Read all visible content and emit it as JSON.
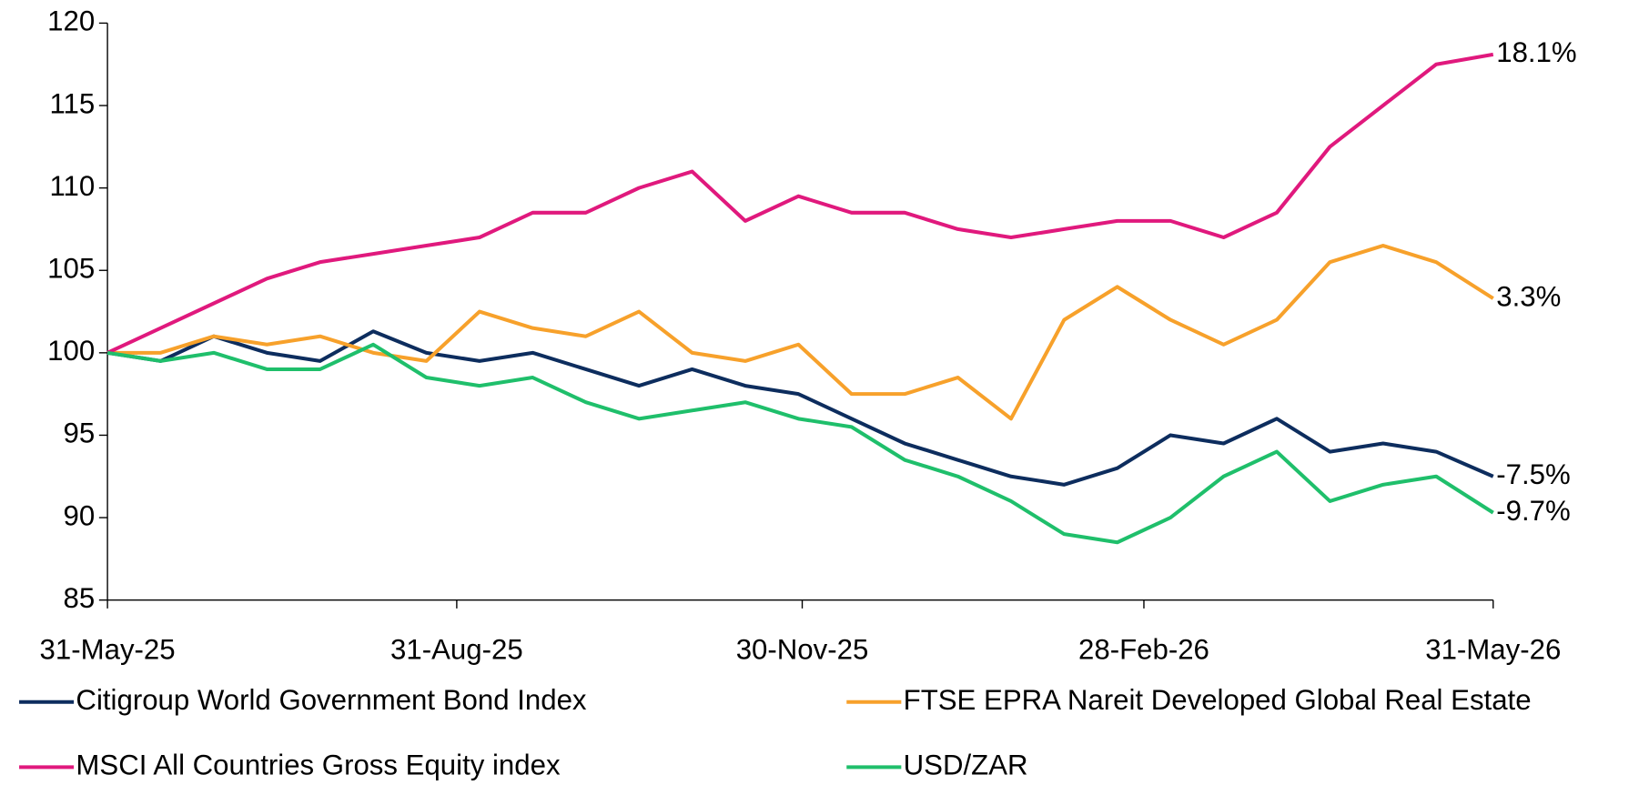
{
  "chart_data": {
    "type": "line",
    "x": [
      "2025-05-31",
      "2025-06-14",
      "2025-06-28",
      "2025-07-12",
      "2025-07-26",
      "2025-08-09",
      "2025-08-23",
      "2025-09-06",
      "2025-09-20",
      "2025-10-04",
      "2025-10-18",
      "2025-11-01",
      "2025-11-15",
      "2025-11-29",
      "2025-12-13",
      "2025-12-27",
      "2026-01-10",
      "2026-01-24",
      "2026-02-07",
      "2026-02-21",
      "2026-03-07",
      "2026-03-21",
      "2026-04-04",
      "2026-04-18",
      "2026-05-02",
      "2026-05-16",
      "2026-05-31"
    ],
    "series": [
      {
        "name": "Citigroup World Government Bond Index",
        "color": "#0d2d5e",
        "end_label": "-7.5%",
        "values": [
          100,
          99.5,
          101,
          100,
          99.5,
          101.3,
          100,
          99.5,
          100,
          99,
          98,
          99,
          98,
          97.5,
          96,
          94.5,
          93.5,
          92.5,
          92,
          93,
          95,
          94.5,
          96,
          94,
          94.5,
          94,
          92.5
        ]
      },
      {
        "name": "FTSE EPRA Nareit Developed Global Real Estate",
        "color": "#f7a12b",
        "end_label": "3.3%",
        "values": [
          100,
          100,
          101,
          100.5,
          101,
          100,
          99.5,
          102.5,
          101.5,
          101,
          102.5,
          100,
          99.5,
          100.5,
          97.5,
          97.5,
          98.5,
          96,
          102,
          104,
          102,
          100.5,
          102,
          105.5,
          106.5,
          105.5,
          103.3
        ]
      },
      {
        "name": "MSCI All Countries Gross Equity index",
        "color": "#e0197d",
        "end_label": "18.1%",
        "values": [
          100,
          101.5,
          103,
          104.5,
          105.5,
          106,
          106.5,
          107,
          108.5,
          108.5,
          110,
          111,
          108,
          109.5,
          108.5,
          108.5,
          107.5,
          107,
          107.5,
          108,
          108,
          107,
          108.5,
          112.5,
          115,
          117.5,
          118.1
        ]
      },
      {
        "name": "USD/ZAR",
        "color": "#1fbf6b",
        "end_label": "-9.7%",
        "values": [
          100,
          99.5,
          100,
          99,
          99,
          100.5,
          98.5,
          98,
          98.5,
          97,
          96,
          96.5,
          97,
          96,
          95.5,
          93.5,
          92.5,
          91,
          89,
          88.5,
          90,
          92.5,
          94,
          91,
          92,
          92.5,
          90.3
        ]
      }
    ],
    "xlim": [
      "2025-05-31",
      "2026-05-31"
    ],
    "xticks": [
      {
        "value": "2025-05-31",
        "label": "31-May-25"
      },
      {
        "value": "2025-08-31",
        "label": "31-Aug-25"
      },
      {
        "value": "2025-11-30",
        "label": "30-Nov-25"
      },
      {
        "value": "2026-02-28",
        "label": "28-Feb-26"
      },
      {
        "value": "2026-05-31",
        "label": "31-May-26"
      }
    ],
    "ylim": [
      85,
      120
    ],
    "yticks": [
      85,
      90,
      95,
      100,
      105,
      110,
      115,
      120
    ],
    "grid": false,
    "legend": "bottom"
  }
}
